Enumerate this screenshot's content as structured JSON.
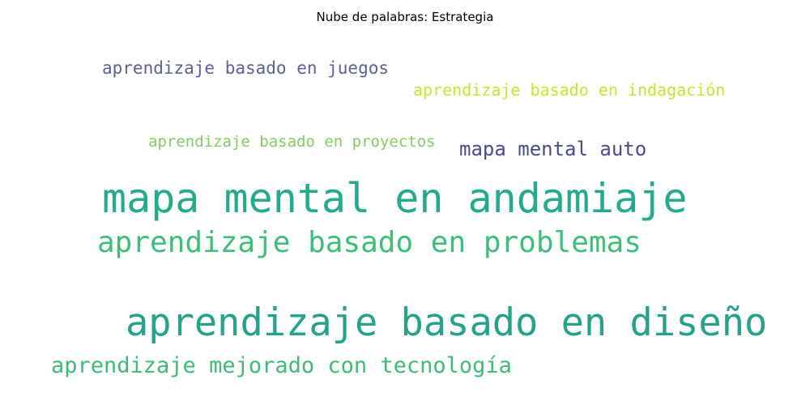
{
  "title": "Nube de palabras: Estrategia",
  "words": [
    {
      "text": "aprendizaje basado en juegos",
      "color": "#5b6196"
    },
    {
      "text": "aprendizaje basado en indagación",
      "color": "#cde332"
    },
    {
      "text": "aprendizaje basado en proyectos",
      "color": "#7ccf5e"
    },
    {
      "text": "mapa mental auto",
      "color": "#4a4a8c"
    },
    {
      "text": "mapa mental en andamiaje",
      "color": "#24ab8c"
    },
    {
      "text": "aprendizaje basado en problemas",
      "color": "#3dbf77"
    },
    {
      "text": "aprendizaje basado en diseño",
      "color": "#25a18c"
    },
    {
      "text": "aprendizaje mejorado con tecnología",
      "color": "#3cbc75"
    }
  ]
}
